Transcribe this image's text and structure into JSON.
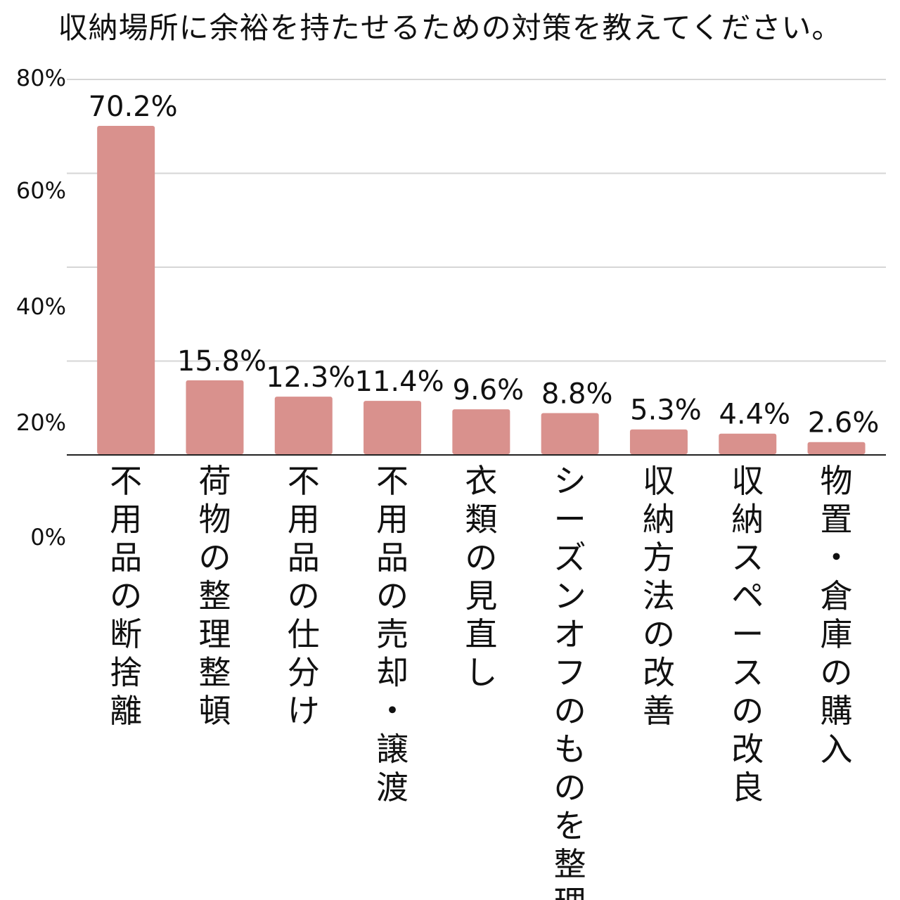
{
  "chart_data": {
    "type": "bar",
    "title": "収納場所に余裕を持たせるための対策を教えてください。",
    "categories": [
      "不用品の断捨離",
      "荷物の整理整頓",
      "不用品の仕分け",
      "不用品の売却・譲渡",
      "衣類の見直し",
      "シーズンオフのものを整理",
      "収納方法の改善",
      "収納スペースの改良",
      "物置・倉庫の購入"
    ],
    "values": [
      70.2,
      15.8,
      12.3,
      11.4,
      9.6,
      8.8,
      5.3,
      4.4,
      2.6
    ],
    "value_labels": [
      "70.2%",
      "15.8%",
      "12.3%",
      "11.4%",
      "9.6%",
      "8.8%",
      "5.3%",
      "4.4%",
      "2.6%"
    ],
    "y_ticks": [
      "0%",
      "20%",
      "40%",
      "60%",
      "80%"
    ],
    "ylim": [
      0,
      80
    ],
    "xlabel": "",
    "ylabel": "",
    "grid": true,
    "bar_color": "#d9918d"
  }
}
